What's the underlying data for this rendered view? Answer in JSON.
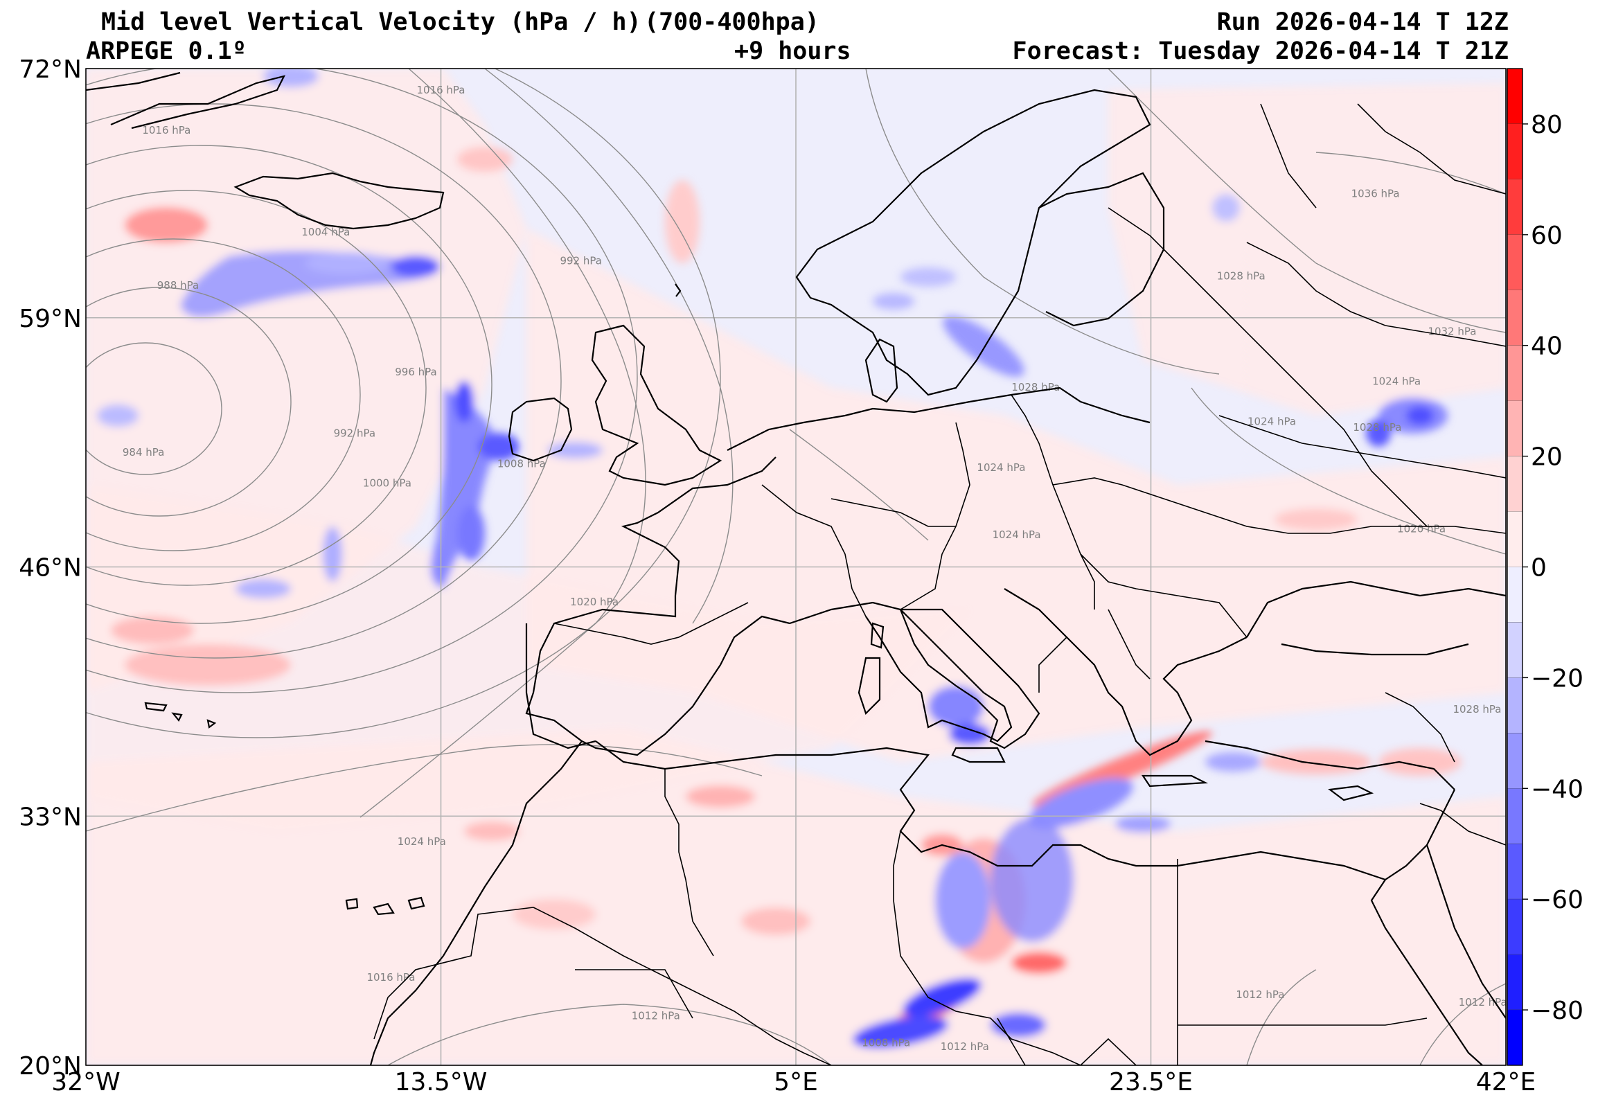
{
  "header": {
    "title": "Mid level Vertical Velocity (hPa / h)",
    "model": "ARPEGE 0.1º",
    "layer": "(700-400hpa)",
    "lead": "+9 hours",
    "run": "Run 2026-04-14 T 12Z",
    "forecast": "Forecast: Tuesday 2026-04-14 T 21Z"
  },
  "map": {
    "projection": "plate carree",
    "lon_range": [
      -32,
      42
    ],
    "lat_range": [
      20,
      72
    ],
    "background_color": "#eeeefc",
    "lon_ticks": [
      {
        "value": -32,
        "label": "32°W"
      },
      {
        "value": -13.5,
        "label": "13.5°W"
      },
      {
        "value": 5,
        "label": "5°E"
      },
      {
        "value": 23.5,
        "label": "23.5°E"
      },
      {
        "value": 42,
        "label": "42°E"
      }
    ],
    "lat_ticks": [
      {
        "value": 72,
        "label": "72°N"
      },
      {
        "value": 59,
        "label": "59°N"
      },
      {
        "value": 46,
        "label": "46°N"
      },
      {
        "value": 33,
        "label": "33°N"
      },
      {
        "value": 20,
        "label": "20°N"
      }
    ],
    "isobars": [
      {
        "label": "1016 hPa",
        "lon": -13.5,
        "lat": 70.7
      },
      {
        "label": "1016 hPa",
        "lon": -27.8,
        "lat": 68.6
      },
      {
        "label": "1004 hPa",
        "lon": -19.5,
        "lat": 63.3
      },
      {
        "label": "988 hPa",
        "lon": -27.2,
        "lat": 60.5
      },
      {
        "label": "992 hPa",
        "lon": -6.2,
        "lat": 61.8
      },
      {
        "label": "996 hPa",
        "lon": -14.8,
        "lat": 56.0
      },
      {
        "label": "992 hPa",
        "lon": -18.0,
        "lat": 52.8
      },
      {
        "label": "984 hPa",
        "lon": -29.0,
        "lat": 51.8
      },
      {
        "label": "1000 hPa",
        "lon": -16.3,
        "lat": 50.2
      },
      {
        "label": "1008 hPa",
        "lon": -9.3,
        "lat": 51.2
      },
      {
        "label": "1020 hPa",
        "lon": -5.5,
        "lat": 44.0
      },
      {
        "label": "1028 hPa",
        "lon": 28.2,
        "lat": 61.0
      },
      {
        "label": "1028 hPa",
        "lon": 17.5,
        "lat": 55.2
      },
      {
        "label": "1036 hPa",
        "lon": 35.2,
        "lat": 65.3
      },
      {
        "label": "1032 hPa",
        "lon": 39.2,
        "lat": 58.1
      },
      {
        "label": "1024 hPa",
        "lon": 36.3,
        "lat": 55.5
      },
      {
        "label": "1024 hPa",
        "lon": 29.8,
        "lat": 53.4
      },
      {
        "label": "1028 hPa",
        "lon": 35.3,
        "lat": 53.1
      },
      {
        "label": "1024 hPa",
        "lon": 15.7,
        "lat": 51.0
      },
      {
        "label": "1020 hPa",
        "lon": 37.6,
        "lat": 47.8
      },
      {
        "label": "1024 hPa",
        "lon": 16.5,
        "lat": 47.5
      },
      {
        "label": "1028 hPa",
        "lon": 40.5,
        "lat": 38.4
      },
      {
        "label": "1024 hPa",
        "lon": -14.5,
        "lat": 31.5
      },
      {
        "label": "1016 hPa",
        "lon": -16.1,
        "lat": 24.4
      },
      {
        "label": "1012 hPa",
        "lon": -2.3,
        "lat": 22.4
      },
      {
        "label": "1012 hPa",
        "lon": 29.2,
        "lat": 23.5
      },
      {
        "label": "1012 hPa",
        "lon": 40.8,
        "lat": 23.1
      },
      {
        "label": "1008 hPa",
        "lon": 9.7,
        "lat": 21.0
      },
      {
        "label": "1012 hPa",
        "lon": 13.8,
        "lat": 20.8
      }
    ]
  },
  "colorbar": {
    "ticks": [
      {
        "value": 80,
        "label": "80"
      },
      {
        "value": 60,
        "label": "60"
      },
      {
        "value": 40,
        "label": "40"
      },
      {
        "value": 20,
        "label": "20"
      },
      {
        "value": 0,
        "label": "0"
      },
      {
        "value": -20,
        "label": "−20"
      },
      {
        "value": -40,
        "label": "−40"
      },
      {
        "value": -60,
        "label": "−60"
      },
      {
        "value": -80,
        "label": "−80"
      }
    ],
    "range": [
      -90,
      90
    ],
    "bins": [
      {
        "from": 80,
        "to": 90,
        "color": "#ff0000"
      },
      {
        "from": 70,
        "to": 80,
        "color": "#ff1f1f"
      },
      {
        "from": 60,
        "to": 70,
        "color": "#ff3c3c"
      },
      {
        "from": 50,
        "to": 60,
        "color": "#ff5a5a"
      },
      {
        "from": 40,
        "to": 50,
        "color": "#ff7878"
      },
      {
        "from": 30,
        "to": 40,
        "color": "#ff9696"
      },
      {
        "from": 20,
        "to": 30,
        "color": "#ffb4b4"
      },
      {
        "from": 10,
        "to": 20,
        "color": "#ffd2d2"
      },
      {
        "from": 0,
        "to": 10,
        "color": "#ffeded"
      },
      {
        "from": -10,
        "to": 0,
        "color": "#eeeeff"
      },
      {
        "from": -20,
        "to": -10,
        "color": "#d2d2ff"
      },
      {
        "from": -30,
        "to": -20,
        "color": "#b4b4ff"
      },
      {
        "from": -40,
        "to": -30,
        "color": "#9696ff"
      },
      {
        "from": -50,
        "to": -40,
        "color": "#7878ff"
      },
      {
        "from": -60,
        "to": -50,
        "color": "#5a5aff"
      },
      {
        "from": -70,
        "to": -60,
        "color": "#3c3cff"
      },
      {
        "from": -80,
        "to": -70,
        "color": "#1f1fff"
      },
      {
        "from": -90,
        "to": -80,
        "color": "#0000ff"
      }
    ]
  }
}
